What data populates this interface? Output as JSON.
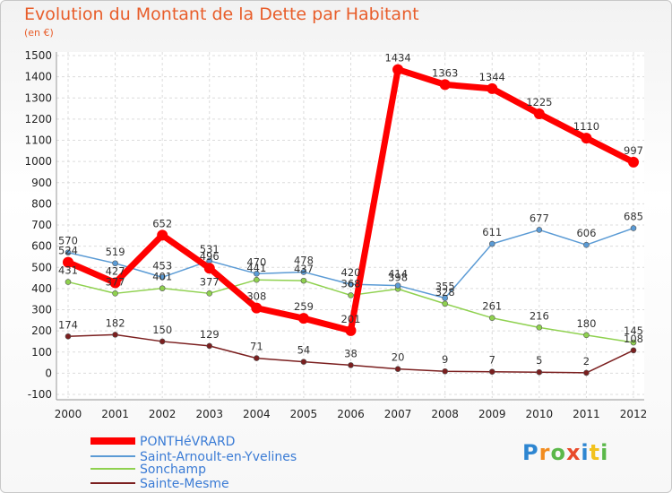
{
  "title": "Evolution du Montant de la Dette par Habitant",
  "subtitle": "(en €)",
  "logo_text": "Proxiti",
  "chart_data": {
    "type": "line",
    "x": [
      2000,
      2001,
      2002,
      2003,
      2004,
      2005,
      2006,
      2007,
      2008,
      2009,
      2010,
      2011,
      2012
    ],
    "ylim": [
      -100,
      1500
    ],
    "yticks": [
      -100,
      0,
      100,
      200,
      300,
      400,
      500,
      600,
      700,
      800,
      900,
      1000,
      1100,
      1200,
      1300,
      1400,
      1500
    ],
    "grid": true,
    "legend_position": "bottom-left",
    "series": [
      {
        "name": "PONTHéVRARD",
        "color": "#ff0000",
        "values": [
          524,
          427,
          652,
          496,
          308,
          259,
          201,
          1434,
          1363,
          1344,
          1225,
          1110,
          997
        ]
      },
      {
        "name": "Saint-Arnoult-en-Yvelines",
        "color": "#5b9bd5",
        "values": [
          570,
          519,
          453,
          531,
          470,
          478,
          420,
          414,
          355,
          611,
          677,
          606,
          685
        ]
      },
      {
        "name": "Sonchamp",
        "color": "#8fd14f",
        "values": [
          431,
          377,
          401,
          377,
          441,
          437,
          368,
          398,
          328,
          261,
          216,
          180,
          145
        ]
      },
      {
        "name": "Sainte-Mesme",
        "color": "#7b1f1f",
        "values": [
          174,
          182,
          150,
          129,
          71,
          54,
          38,
          20,
          9,
          7,
          5,
          2,
          108
        ]
      }
    ]
  }
}
